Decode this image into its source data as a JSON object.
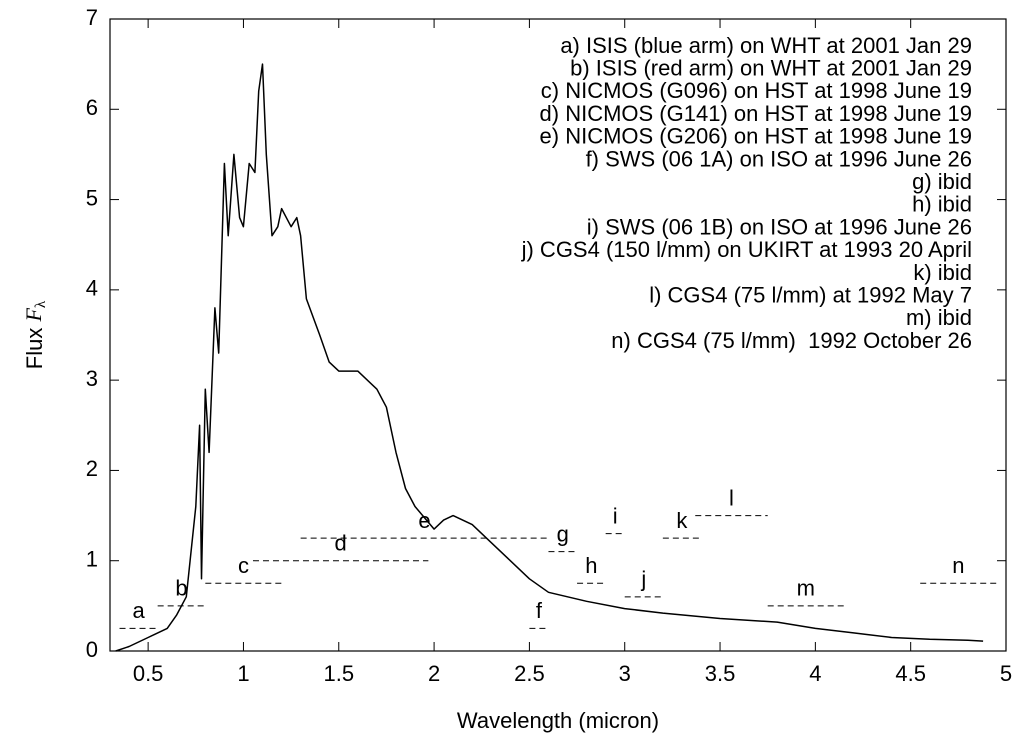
{
  "chart_data": {
    "type": "line",
    "x_label": "Wavelength (micron)",
    "y_label": "Flux",
    "y_label_symbol": "F",
    "y_label_subscript": "λ",
    "xlim": [
      0.3,
      5
    ],
    "xticks": [
      0.5,
      1,
      1.5,
      2,
      2.5,
      3,
      3.5,
      4,
      4.5,
      5
    ],
    "ylim": [
      0,
      7
    ],
    "yticks": [
      0,
      1,
      2,
      3,
      4,
      5,
      6,
      7
    ],
    "color": "#000000",
    "x": [
      0.33,
      0.4,
      0.5,
      0.6,
      0.65,
      0.7,
      0.72,
      0.75,
      0.77,
      0.78,
      0.8,
      0.82,
      0.85,
      0.87,
      0.9,
      0.92,
      0.95,
      0.98,
      1.0,
      1.03,
      1.06,
      1.08,
      1.1,
      1.12,
      1.15,
      1.18,
      1.2,
      1.25,
      1.28,
      1.3,
      1.33,
      1.4,
      1.45,
      1.5,
      1.6,
      1.7,
      1.75,
      1.8,
      1.85,
      1.9,
      2.0,
      2.05,
      2.1,
      2.2,
      2.3,
      2.4,
      2.5,
      2.6,
      2.8,
      3.0,
      3.2,
      3.5,
      3.8,
      4.0,
      4.2,
      4.4,
      4.6,
      4.8,
      4.88
    ],
    "values": [
      0.0,
      0.05,
      0.15,
      0.25,
      0.4,
      0.6,
      1.0,
      1.6,
      2.5,
      0.8,
      2.9,
      2.2,
      3.8,
      3.3,
      5.4,
      4.6,
      5.5,
      4.8,
      4.7,
      5.4,
      5.3,
      6.2,
      6.5,
      5.5,
      4.6,
      4.7,
      4.9,
      4.7,
      4.8,
      4.6,
      3.9,
      3.5,
      3.2,
      3.1,
      3.1,
      2.9,
      2.7,
      2.2,
      1.8,
      1.6,
      1.35,
      1.45,
      1.5,
      1.4,
      1.2,
      1.0,
      0.8,
      0.65,
      0.55,
      0.47,
      0.42,
      0.36,
      0.32,
      0.25,
      0.2,
      0.15,
      0.13,
      0.12,
      0.11
    ],
    "segments": [
      {
        "label": "a",
        "x": [
          0.35,
          0.55
        ],
        "value": 0.25
      },
      {
        "label": "b",
        "x": [
          0.55,
          0.8
        ],
        "value": 0.5
      },
      {
        "label": "c",
        "x": [
          0.8,
          1.2
        ],
        "value": 0.75
      },
      {
        "label": "d",
        "x": [
          1.05,
          1.97
        ],
        "value": 1.0
      },
      {
        "label": "e",
        "x": [
          1.3,
          2.6
        ],
        "value": 1.25
      },
      {
        "label": "f",
        "x": [
          2.5,
          2.6
        ],
        "value": 0.25
      },
      {
        "label": "g",
        "x": [
          2.6,
          2.75
        ],
        "value": 1.1
      },
      {
        "label": "h",
        "x": [
          2.75,
          2.9
        ],
        "value": 0.75
      },
      {
        "label": "i",
        "x": [
          2.9,
          3.0
        ],
        "value": 1.3
      },
      {
        "label": "j",
        "x": [
          3.0,
          3.2
        ],
        "value": 0.6
      },
      {
        "label": "k",
        "x": [
          3.2,
          3.4
        ],
        "value": 1.25
      },
      {
        "label": "l",
        "x": [
          3.37,
          3.75
        ],
        "value": 1.5
      },
      {
        "label": "m",
        "x": [
          3.75,
          4.15
        ],
        "value": 0.5
      },
      {
        "label": "n",
        "x": [
          4.55,
          4.95
        ],
        "value": 0.75
      }
    ],
    "notes": [
      "a) ISIS (blue arm) on WHT at 2001 Jan 29",
      "b) ISIS (red arm) on WHT at 2001 Jan 29",
      "c) NICMOS (G096) on HST at 1998 June 19",
      "d) NICMOS (G141) on HST at 1998 June 19",
      "e) NICMOS (G206) on HST at 1998 June 19",
      "f) SWS (06 1A) on ISO at 1996 June 26",
      "g) ibid",
      "h) ibid",
      "i) SWS (06 1B) on ISO at 1996 June 26",
      "j) CGS4 (150 l/mm) on UKIRT at 1993 20 April",
      "k) ibid",
      "l) CGS4 (75 l/mm) at 1992 May 7",
      "m) ibid",
      "n) CGS4 (75 l/mm)  1992 October 26"
    ]
  }
}
